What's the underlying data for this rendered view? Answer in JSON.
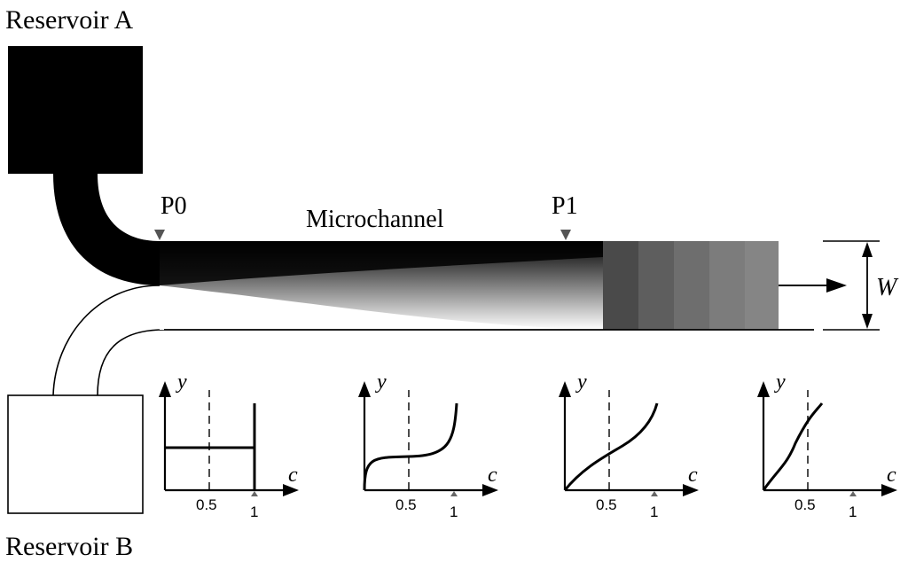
{
  "reservoirs": {
    "a_label": "Reservoir A",
    "b_label": "Reservoir B"
  },
  "channel": {
    "label": "Microchannel",
    "probe_start": "P0",
    "probe_end": "P1",
    "width_label": "W"
  },
  "profiles": {
    "x_axis_symbol": "c",
    "y_axis_symbol": "y",
    "tick_half": "0.5",
    "tick_one": "1"
  },
  "colors": {
    "reservoir_a": "#000000",
    "reservoir_b": "#ffffff",
    "marker": "#555555"
  }
}
